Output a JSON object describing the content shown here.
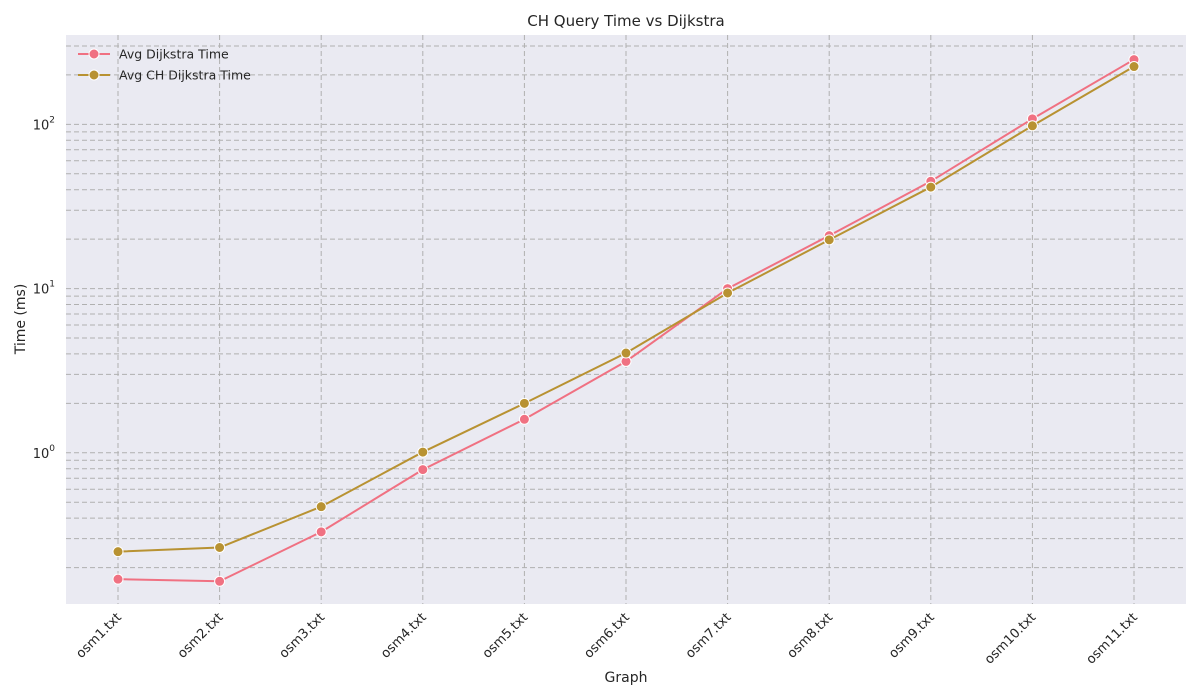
{
  "chart_data": {
    "type": "line",
    "title": "CH Query Time vs Dijkstra",
    "xlabel": "Graph",
    "ylabel": "Time (ms)",
    "yscale": "log",
    "ylim": [
      0.12,
      350
    ],
    "grid": true,
    "legend_position": "top-left",
    "categories": [
      "osm1.txt",
      "osm2.txt",
      "osm3.txt",
      "osm4.txt",
      "osm5.txt",
      "osm6.txt",
      "osm7.txt",
      "osm8.txt",
      "osm9.txt",
      "osm10.txt",
      "osm11.txt"
    ],
    "y_tick_labels": [
      {
        "base": "10",
        "exp": "0"
      },
      {
        "base": "10",
        "exp": "1"
      },
      {
        "base": "10",
        "exp": "2"
      }
    ],
    "series": [
      {
        "name": "Avg Dijkstra Time",
        "color": "#f07182",
        "values": [
          0.17,
          0.165,
          0.33,
          0.79,
          1.6,
          3.6,
          10.0,
          21.0,
          45.0,
          108.0,
          248.0
        ]
      },
      {
        "name": "Avg CH Dijkstra Time",
        "color": "#b89232",
        "values": [
          0.25,
          0.265,
          0.47,
          1.01,
          2.0,
          4.05,
          9.4,
          19.8,
          41.5,
          98.0,
          225.0
        ]
      }
    ]
  }
}
